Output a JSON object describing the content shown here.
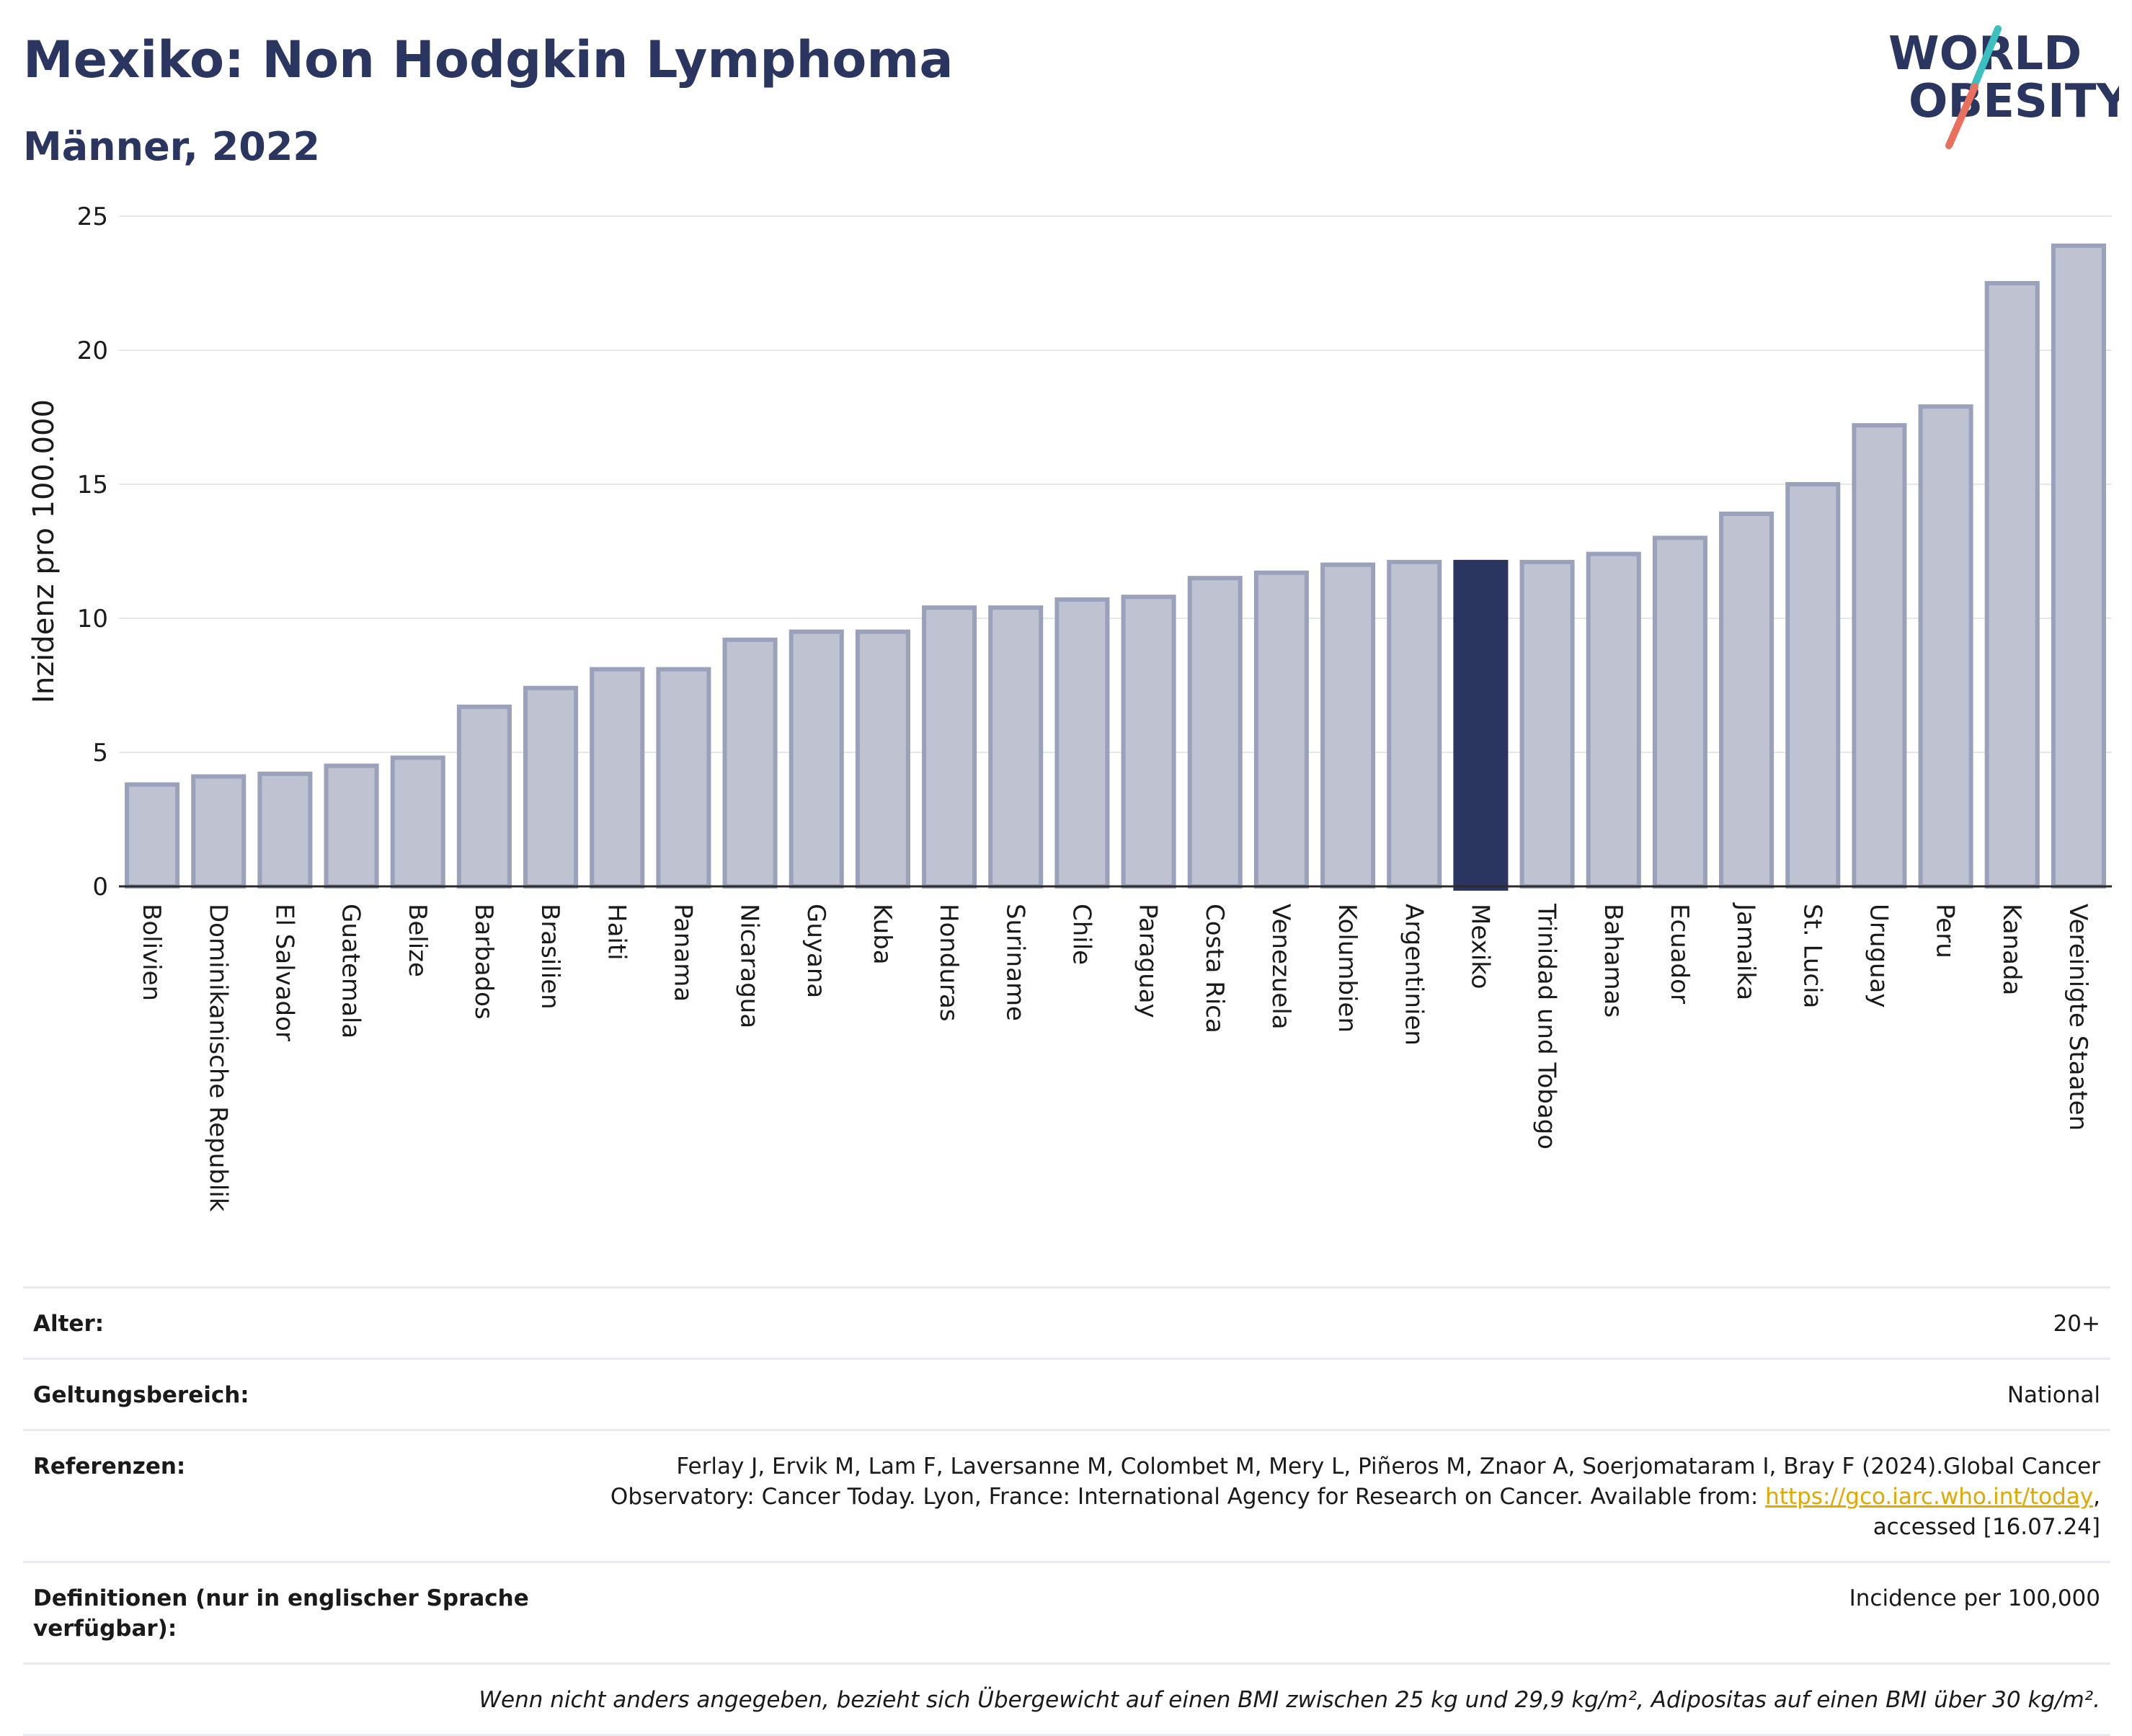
{
  "header": {
    "title": "Mexiko: Non Hodgkin Lymphoma",
    "subtitle": "Männer, 2022",
    "logo_line1": "WORLD",
    "logo_line2": "OBESITY"
  },
  "colors": {
    "bar_default": "#bfc3d1",
    "bar_stroke": "#9aa1ba",
    "bar_highlight": "#2b3660",
    "text_primary": "#2b3660",
    "logo_teal": "#3bbfbf",
    "logo_coral": "#e8705c"
  },
  "chart_data": {
    "type": "bar",
    "title": "",
    "xlabel": "",
    "ylabel": "Inzidenz pro 100.000",
    "ylim": [
      0,
      25
    ],
    "yticks": [
      0,
      5,
      10,
      15,
      20,
      25
    ],
    "grid": true,
    "highlight": "Mexiko",
    "categories": [
      "Bolivien",
      "Dominikanische Republik",
      "El Salvador",
      "Guatemala",
      "Belize",
      "Barbados",
      "Brasilien",
      "Haiti",
      "Panama",
      "Nicaragua",
      "Guyana",
      "Kuba",
      "Honduras",
      "Suriname",
      "Chile",
      "Paraguay",
      "Costa Rica",
      "Venezuela",
      "Kolumbien",
      "Argentinien",
      "Mexiko",
      "Trinidad und Tobago",
      "Bahamas",
      "Ecuador",
      "Jamaika",
      "St. Lucia",
      "Uruguay",
      "Peru",
      "Kanada",
      "Vereinigte Staaten"
    ],
    "values": [
      3.8,
      4.1,
      4.2,
      4.5,
      4.8,
      6.7,
      7.4,
      8.1,
      8.1,
      9.2,
      9.5,
      9.5,
      10.4,
      10.4,
      10.7,
      10.8,
      11.5,
      11.7,
      12.0,
      12.1,
      12.1,
      12.1,
      12.4,
      13.0,
      13.9,
      15.0,
      17.2,
      17.9,
      22.5,
      23.9
    ]
  },
  "info": {
    "age_label": "Alter:",
    "age_value": "20+",
    "scope_label": "Geltungsbereich:",
    "scope_value": "National",
    "ref_label": "Referenzen:",
    "ref_text_1": "Ferlay J, Ervik M, Lam F, Laversanne M, Colombet M, Mery L, Piñeros M, Znaor A, Soerjomataram I, Bray F (2024).Global Cancer",
    "ref_text_2": "Observatory: Cancer Today. Lyon, France: International Agency for Research on Cancer. Available from: ",
    "ref_link": "https://gco.iarc.who.int/today",
    "ref_text_3": ",",
    "ref_text_4": "accessed [16.07.24]",
    "def_label": "Definitionen (nur in englischer Sprache verfügbar):",
    "def_value": "Incidence per 100,000",
    "note": "Wenn nicht anders angegeben, bezieht sich Übergewicht auf einen BMI zwischen 25 kg und 29,9 kg/m², Adipositas auf einen BMI über 30 kg/m²."
  }
}
